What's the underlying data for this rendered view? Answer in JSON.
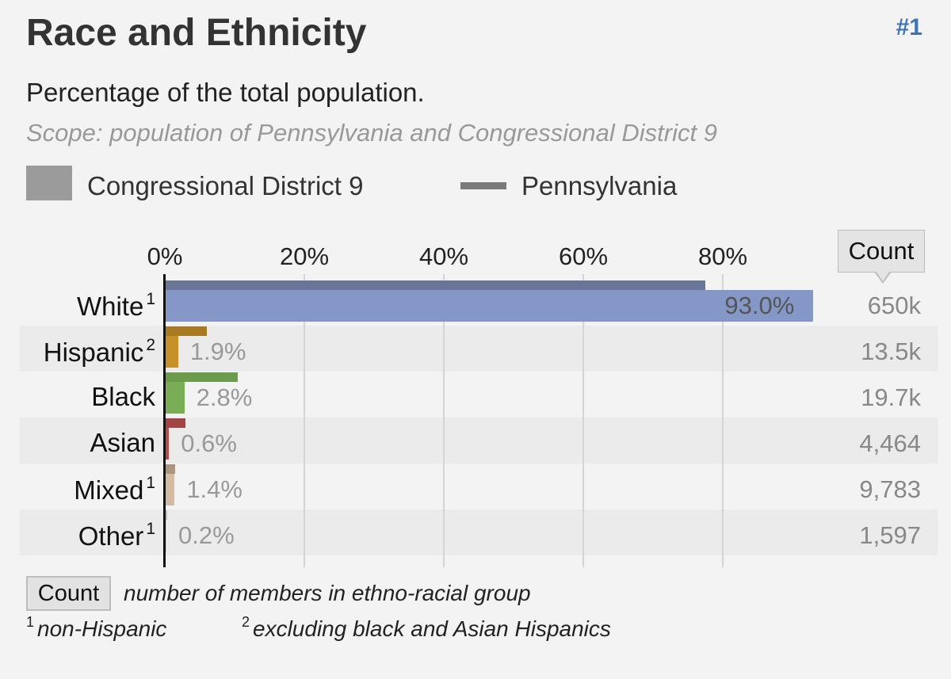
{
  "header": {
    "title": "Race and Ethnicity",
    "rank": "#1"
  },
  "subtitle": "Percentage of the total population.",
  "scope": "Scope: population of Pennsylvania and Congressional District 9",
  "legend": {
    "series_primary": "Congressional District 9",
    "series_compare": "Pennsylvania"
  },
  "count_header": "Count",
  "chart_data": {
    "type": "bar",
    "orientation": "horizontal",
    "title": "Race and Ethnicity",
    "xlabel": "Percentage of the total population",
    "xlim": [
      0,
      100
    ],
    "xticks": [
      "0%",
      "20%",
      "40%",
      "60%",
      "80%"
    ],
    "xtick_values": [
      0,
      20,
      40,
      60,
      80
    ],
    "categories": [
      "White",
      "Hispanic",
      "Black",
      "Asian",
      "Mixed",
      "Other"
    ],
    "footnote_marks": [
      "1",
      "2",
      "",
      "",
      "1",
      "1"
    ],
    "colors": [
      "#8497c6",
      "#c8902a",
      "#79ad56",
      "#b44a4a",
      "#d3bca1",
      "#cfcfcf"
    ],
    "compare_colors": [
      "#6a7698",
      "#a87a24",
      "#6c9b4b",
      "#a14444",
      "#ab9580",
      "#bdbdbd"
    ],
    "series": [
      {
        "name": "Congressional District 9",
        "values": [
          93.0,
          1.9,
          2.8,
          0.6,
          1.4,
          0.2
        ],
        "labels": [
          "93.0%",
          "1.9%",
          "2.8%",
          "0.6%",
          "1.4%",
          "0.2%"
        ]
      },
      {
        "name": "Pennsylvania",
        "values": [
          77.5,
          6.0,
          10.5,
          3.0,
          1.5,
          0.2
        ]
      }
    ],
    "counts": [
      "650k",
      "13.5k",
      "19.7k",
      "4,464",
      "9,783",
      "1,597"
    ]
  },
  "footer": {
    "count_button": "Count",
    "count_desc": "number of members in ethno-racial group",
    "note1_mark": "1",
    "note1": "non-Hispanic",
    "note2_mark": "2",
    "note2": "excluding black and Asian Hispanics"
  }
}
